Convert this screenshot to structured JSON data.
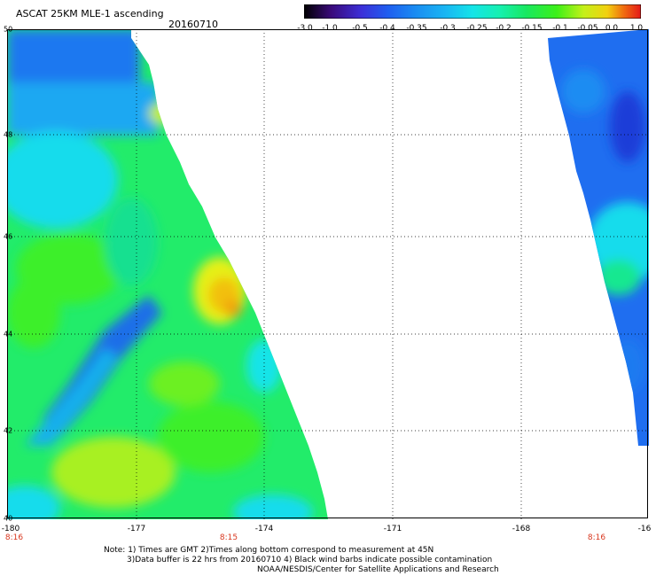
{
  "header": {
    "title": "ASCAT 25KM MLE-1 ascending",
    "date": "20160710"
  },
  "colorbar": {
    "ticks": [
      "-3.0",
      "-1.0",
      "-0.5",
      "-0.4",
      "-0.35",
      "-0.3",
      "-0.25",
      "-0.2",
      "-0.15",
      "-0.1",
      "-0.05",
      "0.0",
      "1.0"
    ],
    "colors": [
      "#000000",
      "#3a0a7a",
      "#3c2fd8",
      "#1f5ef0",
      "#1a8cf2",
      "#19b6f3",
      "#14e4e8",
      "#16f0b0",
      "#18e860",
      "#3cf018",
      "#c4f018",
      "#f2d010",
      "#f06a10",
      "#e41818"
    ]
  },
  "axes": {
    "lat_labels": [
      "50",
      "48",
      "46",
      "44",
      "42",
      "40"
    ],
    "lon_labels": [
      "-180",
      "-177",
      "-174",
      "-171",
      "-168",
      "-16"
    ],
    "time_labels": [
      "8:16",
      "8:15",
      "8:16"
    ]
  },
  "notes": {
    "line1": "Note: 1) Times are GMT 2)Times along bottom correspond to measurement at 45N",
    "line2": "3)Data buffer is 22 hrs from 20160710 4) Black wind barbs indicate possible contamination",
    "line3": "NOAA/NESDIS/Center for Satellite Applications and Research"
  }
}
